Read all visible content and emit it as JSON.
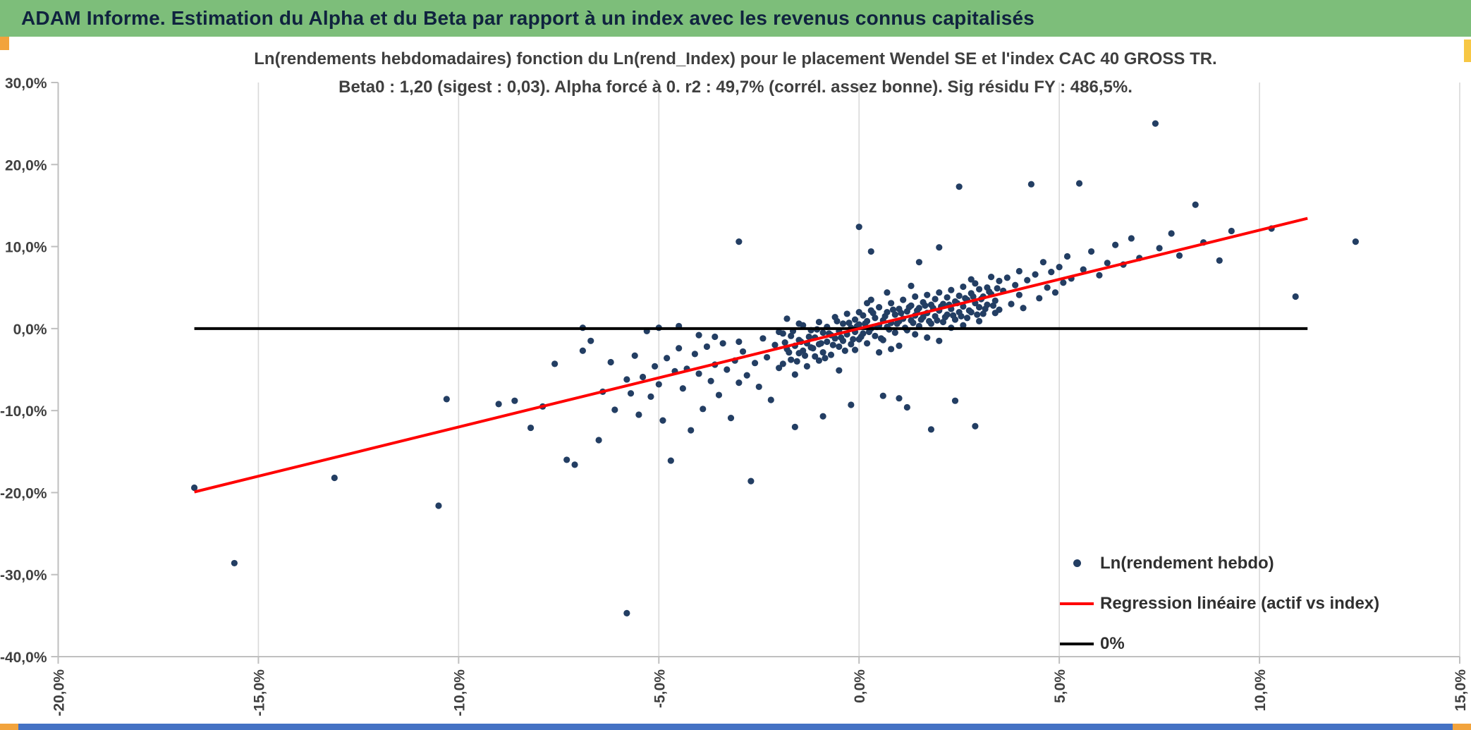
{
  "header": {
    "title": "ADAM Informe. Estimation du Alpha et du Beta par rapport à un index avec les revenus connus capitalisés"
  },
  "colors": {
    "header_green": "#7DBE7A",
    "point_navy": "#233E63",
    "regression_red": "#FF0000",
    "zero_black": "#000000",
    "bottom_strip_blue": "#4472C4",
    "corner_orange": "#F2A33C",
    "edge_yellow": "#F7C744"
  },
  "chart_data": {
    "type": "scatter",
    "title_line1": "Ln(rendements hebdomadaires) fonction du Ln(rend_Index) pour le placement Wendel SE et l'index CAC 40 GROSS TR.",
    "title_line2": "Beta0 : 1,20 (sigest : 0,03). Alpha forcé à 0. r2 : 49,7% (corrél. assez bonne). Sig résidu FY : 486,5%.",
    "xlabel": "",
    "ylabel": "",
    "xlim": [
      -20,
      15
    ],
    "ylim": [
      -40,
      30
    ],
    "x_ticks": [
      "-20,0%",
      "-15,0%",
      "-10,0%",
      "-5,0%",
      "0,0%",
      "5,0%",
      "10,0%",
      "15,0%"
    ],
    "x_tick_values": [
      -20,
      -15,
      -10,
      -5,
      0,
      5,
      10,
      15
    ],
    "y_ticks": [
      "30,0%",
      "20,0%",
      "10,0%",
      "0,0%",
      "-10,0%",
      "-20,0%",
      "-30,0%",
      "-40,0%"
    ],
    "y_tick_values": [
      30,
      20,
      10,
      0,
      -10,
      -20,
      -30,
      -40
    ],
    "grid": "vertical-only",
    "point_color": "#233E63",
    "regression": {
      "slope": 1.2,
      "intercept": 0,
      "x_start": -16.6,
      "x_end": 11.2,
      "color": "#FF0000"
    },
    "zero_line": {
      "y": 0,
      "x_start": -16.6,
      "x_end": 11.2,
      "color": "#000000"
    },
    "legend": [
      {
        "label": "Ln(rendement hebdo)",
        "marker": "dot",
        "color": "#233E63"
      },
      {
        "label": "Regression linéaire (actif vs index)",
        "marker": "line",
        "color": "#FF0000"
      },
      {
        "label": "0%",
        "marker": "line",
        "color": "#000000"
      }
    ],
    "points": [
      [
        -16.6,
        -19.4
      ],
      [
        -15.6,
        -28.6
      ],
      [
        -13.1,
        -18.2
      ],
      [
        -10.5,
        -21.6
      ],
      [
        -10.3,
        -8.6
      ],
      [
        -9.0,
        -9.2
      ],
      [
        -8.6,
        -8.8
      ],
      [
        -8.2,
        -12.1
      ],
      [
        -7.9,
        -9.5
      ],
      [
        -7.6,
        -4.3
      ],
      [
        -7.3,
        -16.0
      ],
      [
        -7.1,
        -16.6
      ],
      [
        -6.9,
        -2.7
      ],
      [
        -6.9,
        0.1
      ],
      [
        -6.7,
        -1.5
      ],
      [
        -6.5,
        -13.6
      ],
      [
        -6.4,
        -7.7
      ],
      [
        -6.2,
        -4.1
      ],
      [
        -6.1,
        -9.9
      ],
      [
        -5.8,
        -34.7
      ],
      [
        -5.8,
        -6.2
      ],
      [
        -5.7,
        -7.9
      ],
      [
        -5.6,
        -3.3
      ],
      [
        -5.5,
        -10.5
      ],
      [
        -5.4,
        -5.9
      ],
      [
        -5.3,
        -0.3
      ],
      [
        -5.2,
        -8.3
      ],
      [
        -5.1,
        -4.6
      ],
      [
        -5.0,
        -6.8
      ],
      [
        -5.0,
        0.1
      ],
      [
        -4.9,
        -11.2
      ],
      [
        -4.8,
        -3.6
      ],
      [
        -4.7,
        -16.1
      ],
      [
        -4.6,
        -5.2
      ],
      [
        -4.5,
        -2.4
      ],
      [
        -4.5,
        0.3
      ],
      [
        -4.4,
        -7.3
      ],
      [
        -4.3,
        -4.9
      ],
      [
        -4.2,
        -12.4
      ],
      [
        -4.1,
        -3.1
      ],
      [
        -4.0,
        -5.5
      ],
      [
        -4.0,
        -0.8
      ],
      [
        -3.9,
        -9.8
      ],
      [
        -3.8,
        -2.2
      ],
      [
        -3.7,
        -6.4
      ],
      [
        -3.6,
        -4.4
      ],
      [
        -3.6,
        -1.0
      ],
      [
        -3.5,
        -8.1
      ],
      [
        -3.4,
        -1.8
      ],
      [
        -3.3,
        -5.0
      ],
      [
        -3.2,
        -10.9
      ],
      [
        -3.1,
        -3.9
      ],
      [
        -3.0,
        10.6
      ],
      [
        -3.0,
        -6.6
      ],
      [
        -3.0,
        -1.6
      ],
      [
        -2.9,
        -2.8
      ],
      [
        -2.8,
        -5.7
      ],
      [
        -2.7,
        -18.6
      ],
      [
        -2.6,
        -4.2
      ],
      [
        -2.5,
        -7.1
      ],
      [
        -2.4,
        -1.2
      ],
      [
        -2.3,
        -3.5
      ],
      [
        -2.2,
        -8.7
      ],
      [
        -2.1,
        -2.0
      ],
      [
        -2.0,
        -4.8
      ],
      [
        -2.0,
        -0.4
      ],
      [
        -1.9,
        -0.6
      ],
      [
        -1.9,
        -4.3
      ],
      [
        -1.85,
        -1.7
      ],
      [
        -1.8,
        -2.5
      ],
      [
        -1.8,
        1.2
      ],
      [
        -1.75,
        -2.9
      ],
      [
        -1.7,
        -3.8
      ],
      [
        -1.7,
        -0.9
      ],
      [
        -1.65,
        -0.3
      ],
      [
        -1.6,
        -2.1
      ],
      [
        -1.6,
        -5.6
      ],
      [
        -1.6,
        -12.0
      ],
      [
        -1.55,
        -4.0
      ],
      [
        -1.5,
        -1.4
      ],
      [
        -1.5,
        -3.0
      ],
      [
        -1.5,
        0.6
      ],
      [
        -1.45,
        -1.6
      ],
      [
        -1.4,
        0.4
      ],
      [
        -1.4,
        -2.7
      ],
      [
        -1.35,
        -3.3
      ],
      [
        -1.3,
        -1.8
      ],
      [
        -1.3,
        -4.6
      ],
      [
        -1.25,
        -1.0
      ],
      [
        -1.2,
        -0.2
      ],
      [
        -1.2,
        -2.3
      ],
      [
        -1.15,
        -2.4
      ],
      [
        -1.1,
        -1.1
      ],
      [
        -1.1,
        -3.4
      ],
      [
        -1.05,
        -0.1
      ],
      [
        -1.0,
        0.8
      ],
      [
        -1.0,
        -1.9
      ],
      [
        -1.0,
        -3.9
      ],
      [
        -0.95,
        -1.8
      ],
      [
        -0.9,
        -0.5
      ],
      [
        -0.9,
        -2.9
      ],
      [
        -0.9,
        -10.7
      ],
      [
        -0.85,
        -3.6
      ],
      [
        -0.8,
        0.2
      ],
      [
        -0.8,
        -1.6
      ],
      [
        -0.75,
        -0.6
      ],
      [
        -0.7,
        -0.8
      ],
      [
        -0.7,
        -3.2
      ],
      [
        -0.65,
        -2.0
      ],
      [
        -0.6,
        1.4
      ],
      [
        -0.6,
        -1.2
      ],
      [
        -0.55,
        0.9
      ],
      [
        -0.5,
        -0.3
      ],
      [
        -0.5,
        -2.2
      ],
      [
        -0.5,
        -5.1
      ],
      [
        -0.45,
        -1.1
      ],
      [
        -0.4,
        0.6
      ],
      [
        -0.4,
        -1.5
      ],
      [
        -0.35,
        -2.7
      ],
      [
        -0.3,
        1.8
      ],
      [
        -0.3,
        -0.7
      ],
      [
        -0.25,
        0.7
      ],
      [
        -0.2,
        0.1
      ],
      [
        -0.2,
        -1.9
      ],
      [
        -0.2,
        -9.3
      ],
      [
        -0.15,
        -1.3
      ],
      [
        -0.1,
        1.1
      ],
      [
        -0.1,
        -0.4
      ],
      [
        -0.1,
        -2.6
      ],
      [
        -0.05,
        0.3
      ],
      [
        0.0,
        12.4
      ],
      [
        0.0,
        0.5
      ],
      [
        0.0,
        -1.3
      ],
      [
        0.0,
        2.0
      ],
      [
        0.05,
        -1.0
      ],
      [
        0.1,
        1.6
      ],
      [
        0.1,
        -0.6
      ],
      [
        0.15,
        0.6
      ],
      [
        0.2,
        0.9
      ],
      [
        0.2,
        -1.8
      ],
      [
        0.2,
        3.1
      ],
      [
        0.25,
        -0.4
      ],
      [
        0.3,
        2.2
      ],
      [
        0.3,
        0.0
      ],
      [
        0.3,
        9.4
      ],
      [
        0.3,
        3.5
      ],
      [
        0.35,
        1.9
      ],
      [
        0.4,
        1.3
      ],
      [
        0.4,
        -0.9
      ],
      [
        0.45,
        0.2
      ],
      [
        0.5,
        2.6
      ],
      [
        0.5,
        0.4
      ],
      [
        0.5,
        -2.9
      ],
      [
        0.55,
        -1.2
      ],
      [
        0.6,
        1.0
      ],
      [
        0.6,
        -1.4
      ],
      [
        0.6,
        -8.2
      ],
      [
        0.65,
        1.5
      ],
      [
        0.7,
        2.0
      ],
      [
        0.7,
        0.2
      ],
      [
        0.7,
        4.4
      ],
      [
        0.75,
        -0.1
      ],
      [
        0.8,
        3.1
      ],
      [
        0.8,
        0.7
      ],
      [
        0.8,
        -2.5
      ],
      [
        0.85,
        2.3
      ],
      [
        0.9,
        1.7
      ],
      [
        0.9,
        -0.5
      ],
      [
        0.95,
        0.6
      ],
      [
        1.0,
        2.4
      ],
      [
        1.0,
        0.9
      ],
      [
        1.0,
        -2.1
      ],
      [
        1.0,
        -8.5
      ],
      [
        1.05,
        1.9
      ],
      [
        1.1,
        3.5
      ],
      [
        1.1,
        1.2
      ],
      [
        1.15,
        0.1
      ],
      [
        1.2,
        2.1
      ],
      [
        1.2,
        -0.2
      ],
      [
        1.2,
        -9.6
      ],
      [
        1.25,
        2.6
      ],
      [
        1.3,
        2.8
      ],
      [
        1.3,
        1.0
      ],
      [
        1.3,
        5.2
      ],
      [
        1.35,
        0.7
      ],
      [
        1.4,
        3.9
      ],
      [
        1.4,
        1.6
      ],
      [
        1.4,
        -0.7
      ],
      [
        1.45,
        2.2
      ],
      [
        1.5,
        2.5
      ],
      [
        1.5,
        0.3
      ],
      [
        1.5,
        8.1
      ],
      [
        1.55,
        1.1
      ],
      [
        1.6,
        3.2
      ],
      [
        1.6,
        1.4
      ],
      [
        1.65,
        2.8
      ],
      [
        1.7,
        4.1
      ],
      [
        1.7,
        1.9
      ],
      [
        1.7,
        -1.1
      ],
      [
        1.75,
        0.9
      ],
      [
        1.8,
        2.9
      ],
      [
        1.8,
        0.6
      ],
      [
        1.8,
        -12.3
      ],
      [
        1.85,
        2.5
      ],
      [
        1.9,
        3.6
      ],
      [
        1.9,
        1.5
      ],
      [
        1.95,
        1.0
      ],
      [
        2.0,
        4.4
      ],
      [
        2.0,
        2.2
      ],
      [
        2.0,
        9.9
      ],
      [
        2.0,
        -1.5
      ],
      [
        2.05,
        2.7
      ],
      [
        2.1,
        3.0
      ],
      [
        2.1,
        0.8
      ],
      [
        2.15,
        1.4
      ],
      [
        2.2,
        3.8
      ],
      [
        2.2,
        1.7
      ],
      [
        2.25,
        2.9
      ],
      [
        2.3,
        4.7
      ],
      [
        2.3,
        2.4
      ],
      [
        2.3,
        0.1
      ],
      [
        2.35,
        1.6
      ],
      [
        2.4,
        3.3
      ],
      [
        2.4,
        1.1
      ],
      [
        2.4,
        -8.8
      ],
      [
        2.45,
        3.1
      ],
      [
        2.5,
        17.3
      ],
      [
        2.5,
        4.0
      ],
      [
        2.5,
        2.0
      ],
      [
        2.55,
        1.5
      ],
      [
        2.6,
        2.7
      ],
      [
        2.6,
        5.1
      ],
      [
        2.6,
        0.4
      ],
      [
        2.65,
        3.7
      ],
      [
        2.7,
        3.5
      ],
      [
        2.7,
        1.3
      ],
      [
        2.75,
        2.2
      ],
      [
        2.8,
        4.3
      ],
      [
        2.8,
        2.0
      ],
      [
        2.8,
        6.0
      ],
      [
        2.85,
        3.9
      ],
      [
        2.9,
        5.5
      ],
      [
        2.9,
        3.1
      ],
      [
        2.9,
        -11.9
      ],
      [
        2.95,
        1.7
      ],
      [
        3.0,
        4.8
      ],
      [
        3.0,
        2.6
      ],
      [
        3.0,
        0.9
      ],
      [
        3.05,
        3.6
      ],
      [
        3.1,
        3.9
      ],
      [
        3.1,
        1.8
      ],
      [
        3.15,
        2.4
      ],
      [
        3.2,
        5.0
      ],
      [
        3.2,
        2.9
      ],
      [
        3.25,
        4.5
      ],
      [
        3.3,
        4.2
      ],
      [
        3.3,
        6.3
      ],
      [
        3.35,
        2.8
      ],
      [
        3.4,
        3.4
      ],
      [
        3.4,
        1.9
      ],
      [
        3.45,
        4.9
      ],
      [
        3.5,
        5.8
      ],
      [
        3.5,
        2.3
      ],
      [
        3.6,
        4.6
      ],
      [
        3.7,
        6.2
      ],
      [
        3.8,
        3.0
      ],
      [
        3.9,
        5.3
      ],
      [
        4.0,
        7.0
      ],
      [
        4.0,
        4.1
      ],
      [
        4.1,
        2.5
      ],
      [
        4.2,
        5.9
      ],
      [
        4.3,
        17.6
      ],
      [
        4.4,
        6.6
      ],
      [
        4.5,
        3.7
      ],
      [
        4.6,
        8.1
      ],
      [
        4.7,
        5.0
      ],
      [
        4.8,
        6.9
      ],
      [
        4.9,
        4.4
      ],
      [
        5.0,
        7.5
      ],
      [
        5.1,
        5.6
      ],
      [
        5.2,
        8.8
      ],
      [
        5.3,
        6.1
      ],
      [
        5.5,
        17.7
      ],
      [
        5.6,
        7.2
      ],
      [
        5.8,
        9.4
      ],
      [
        6.0,
        6.5
      ],
      [
        6.2,
        8.0
      ],
      [
        6.4,
        10.2
      ],
      [
        6.6,
        7.8
      ],
      [
        6.8,
        11.0
      ],
      [
        7.0,
        8.6
      ],
      [
        7.4,
        25.0
      ],
      [
        7.5,
        9.8
      ],
      [
        7.8,
        11.6
      ],
      [
        8.0,
        8.9
      ],
      [
        8.4,
        15.1
      ],
      [
        8.6,
        10.5
      ],
      [
        9.0,
        8.3
      ],
      [
        9.3,
        11.9
      ],
      [
        10.3,
        12.2
      ],
      [
        10.9,
        3.9
      ],
      [
        12.4,
        10.6
      ]
    ]
  }
}
